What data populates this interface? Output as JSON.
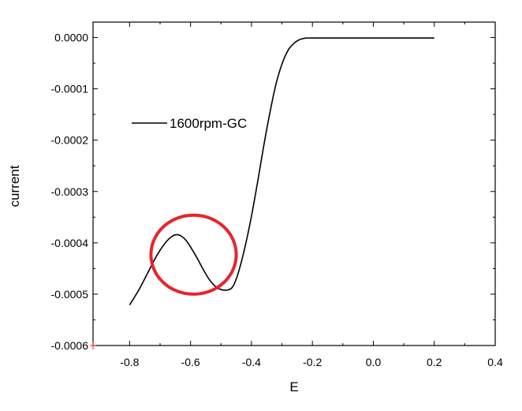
{
  "chart_data": {
    "type": "line",
    "title": "",
    "xlabel": "E",
    "ylabel": "current",
    "xlim": [
      -0.92,
      0.4
    ],
    "ylim": [
      -0.0006,
      3e-05
    ],
    "x_ticks": [
      "-0.8",
      "-0.6",
      "-0.4",
      "-0.2",
      "0.0",
      "0.2",
      "0.4"
    ],
    "y_ticks": [
      "0.0000",
      "-0.0001",
      "-0.0002",
      "-0.0003",
      "-0.0004",
      "-0.0005",
      "-0.0006"
    ],
    "grid": false,
    "legend_position": "top-left",
    "series": [
      {
        "name": "1600rpm-GC",
        "color": "#000000",
        "x": [
          -0.8,
          -0.77,
          -0.74,
          -0.71,
          -0.68,
          -0.66,
          -0.645,
          -0.63,
          -0.615,
          -0.6,
          -0.58,
          -0.56,
          -0.54,
          -0.52,
          -0.5,
          -0.48,
          -0.465,
          -0.455,
          -0.44,
          -0.42,
          -0.4,
          -0.38,
          -0.36,
          -0.34,
          -0.32,
          -0.3,
          -0.28,
          -0.26,
          -0.245,
          -0.23,
          -0.22,
          -0.2,
          -0.18,
          -0.15,
          -0.1,
          0.0,
          0.1,
          0.2
        ],
        "y": [
          -0.000521,
          -0.000492,
          -0.000458,
          -0.000424,
          -0.000398,
          -0.000387,
          -0.000384,
          -0.000387,
          -0.000395,
          -0.000408,
          -0.000428,
          -0.00045,
          -0.00047,
          -0.000484,
          -0.000491,
          -0.000492,
          -0.000488,
          -0.000478,
          -0.000452,
          -0.000405,
          -0.000348,
          -0.000282,
          -0.000212,
          -0.000148,
          -9.2e-05,
          -5.2e-05,
          -2.5e-05,
          -1.1e-05,
          -5e-06,
          -2e-06,
          -1e-06,
          -1e-06,
          -1e-06,
          -1e-06,
          -1e-06,
          -1e-06,
          -1e-06,
          -1e-06
        ]
      }
    ],
    "annotations": [
      {
        "type": "ellipse",
        "color": "#e8242a",
        "cx": -0.59,
        "cy": -0.000423,
        "rx": 0.14,
        "ry": 7.7e-05
      }
    ]
  }
}
